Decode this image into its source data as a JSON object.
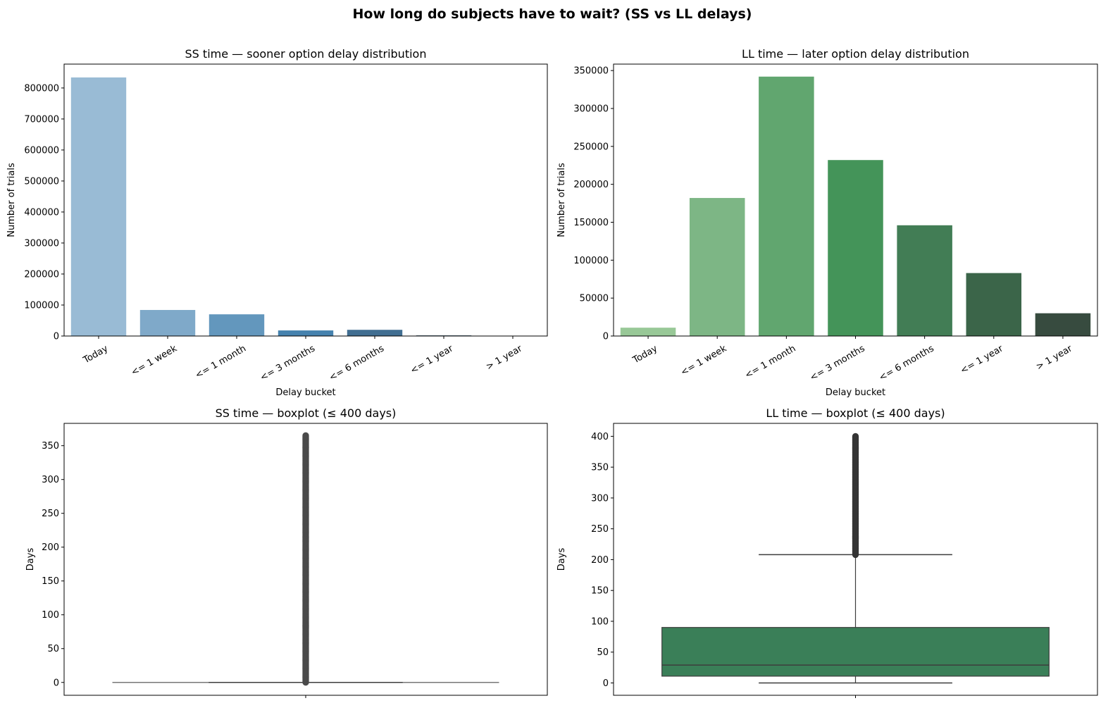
{
  "suptitle": "How long do subjects have to wait? (SS vs LL delays)",
  "chart_data": [
    {
      "type": "bar",
      "title": "SS time — sooner option delay distribution",
      "xlabel": "Delay bucket",
      "ylabel": "Number of trials",
      "categories": [
        "Today",
        "<= 1 week",
        "<= 1 month",
        "<= 3 months",
        "<= 6 months",
        "<= 1 year",
        "> 1 year"
      ],
      "values": [
        834000,
        84000,
        70000,
        18000,
        20000,
        2000,
        500
      ],
      "colors": [
        "#99bbd5",
        "#7fa9c9",
        "#6397bd",
        "#4682ae",
        "#416e91",
        "#3b5870",
        "#33404d"
      ],
      "ylim": [
        0,
        877000
      ],
      "yticks": [
        0,
        100000,
        200000,
        300000,
        400000,
        500000,
        600000,
        700000,
        800000
      ],
      "grid": false
    },
    {
      "type": "bar",
      "title": "LL time — later option delay distribution",
      "xlabel": "Delay bucket",
      "ylabel": "Number of trials",
      "categories": [
        "Today",
        "<= 1 week",
        "<= 1 month",
        "<= 3 months",
        "<= 6 months",
        "<= 1 year",
        "> 1 year"
      ],
      "values": [
        11000,
        182000,
        342000,
        232000,
        146000,
        83000,
        30000
      ],
      "colors": [
        "#98c897",
        "#7db685",
        "#61a66f",
        "#449459",
        "#427d55",
        "#3b6549",
        "#374b3f"
      ],
      "ylim": [
        0,
        358500
      ],
      "yticks": [
        0,
        50000,
        100000,
        150000,
        200000,
        250000,
        300000,
        350000
      ],
      "grid": false
    },
    {
      "type": "boxplot",
      "title": "SS time — boxplot (≤ 400 days)",
      "xlabel": "",
      "ylabel": "Days",
      "whisker_low": 0,
      "q1": 0,
      "median": 0,
      "q3": 0,
      "whisker_high": 0,
      "outlier_range": [
        0,
        365
      ],
      "color": "#4a4a4a",
      "ylim": [
        -19,
        383
      ],
      "yticks": [
        0,
        50,
        100,
        150,
        200,
        250,
        300,
        350
      ],
      "grid": false
    },
    {
      "type": "boxplot",
      "title": "LL time — boxplot (≤ 400 days)",
      "xlabel": "",
      "ylabel": "Days",
      "whisker_low": 0,
      "q1": 11,
      "median": 29,
      "q3": 90,
      "whisker_high": 208,
      "outlier_range": [
        208,
        400
      ],
      "color": "#3a7f58",
      "ylim": [
        -20,
        421
      ],
      "yticks": [
        0,
        50,
        100,
        150,
        200,
        250,
        300,
        350,
        400
      ],
      "grid": false
    }
  ]
}
